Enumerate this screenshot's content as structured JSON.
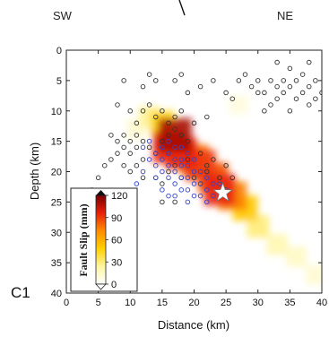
{
  "chart_data": {
    "type": "heatmap",
    "panel_label": "C1",
    "direction_left": "SW",
    "direction_right": "NE",
    "xlabel": "Distance (km)",
    "ylabel": "Depth (km)",
    "xlim": [
      0,
      40
    ],
    "ylim": [
      40,
      0
    ],
    "y_inverted": true,
    "x_ticks": [
      0,
      5,
      10,
      15,
      20,
      25,
      30,
      35,
      40
    ],
    "y_ticks": [
      0,
      5,
      10,
      15,
      20,
      25,
      30,
      35,
      40
    ],
    "colorbar": {
      "label": "Fault Slip (mm)",
      "ticks": [
        0,
        30,
        60,
        90,
        120
      ],
      "range": [
        0,
        120
      ],
      "colors": [
        "#ffffff",
        "#fff5a0",
        "#ffd000",
        "#ff8c00",
        "#e8200a",
        "#7a0000"
      ]
    },
    "slip_field": [
      {
        "x": 13,
        "y": 11,
        "slip": 25
      },
      {
        "x": 15,
        "y": 12,
        "slip": 45
      },
      {
        "x": 17,
        "y": 14,
        "slip": 110
      },
      {
        "x": 16,
        "y": 16,
        "slip": 95
      },
      {
        "x": 18,
        "y": 17,
        "slip": 95
      },
      {
        "x": 20,
        "y": 18,
        "slip": 80
      },
      {
        "x": 21,
        "y": 19,
        "slip": 90
      },
      {
        "x": 23,
        "y": 21,
        "slip": 85
      },
      {
        "x": 24,
        "y": 23,
        "slip": 95
      },
      {
        "x": 26,
        "y": 24,
        "slip": 75
      },
      {
        "x": 28,
        "y": 26,
        "slip": 50
      },
      {
        "x": 30,
        "y": 29,
        "slip": 30
      },
      {
        "x": 33,
        "y": 32,
        "slip": 20
      },
      {
        "x": 36,
        "y": 34,
        "slip": 15
      },
      {
        "x": 39,
        "y": 37,
        "slip": 12
      },
      {
        "x": 11,
        "y": 13,
        "slip": 12
      },
      {
        "x": 27,
        "y": 9,
        "slip": 8
      }
    ],
    "mainshock": {
      "x": 24.5,
      "y": 23.5
    },
    "series": [
      {
        "marker": "open-circle-black",
        "points": [
          [
            9,
            5
          ],
          [
            12,
            6
          ],
          [
            13,
            4
          ],
          [
            14,
            5
          ],
          [
            17,
            5
          ],
          [
            18,
            4
          ],
          [
            19,
            7
          ],
          [
            21,
            6
          ],
          [
            23,
            5
          ],
          [
            25,
            7
          ],
          [
            26,
            8
          ],
          [
            27,
            5
          ],
          [
            28,
            4
          ],
          [
            30,
            7
          ],
          [
            8,
            9
          ],
          [
            10,
            10
          ],
          [
            11,
            12
          ],
          [
            12,
            10
          ],
          [
            13,
            9
          ],
          [
            14,
            11
          ],
          [
            15,
            10
          ],
          [
            16,
            12
          ],
          [
            17,
            11
          ],
          [
            18,
            10
          ],
          [
            20,
            12
          ],
          [
            22,
            11
          ],
          [
            7,
            14
          ],
          [
            8,
            15
          ],
          [
            9,
            16
          ],
          [
            8,
            17
          ],
          [
            9,
            14
          ],
          [
            10,
            15
          ],
          [
            10,
            17
          ],
          [
            11,
            14
          ],
          [
            11,
            16
          ],
          [
            12,
            15
          ],
          [
            12,
            18
          ],
          [
            13,
            16
          ],
          [
            14,
            17
          ],
          [
            9,
            19
          ],
          [
            10,
            20
          ],
          [
            11,
            19
          ],
          [
            12,
            21
          ],
          [
            5,
            21
          ],
          [
            4,
            23
          ],
          [
            3,
            25
          ],
          [
            6,
            19
          ],
          [
            7,
            18
          ],
          [
            14,
            21
          ],
          [
            15,
            22
          ],
          [
            16,
            20
          ],
          [
            17,
            19
          ],
          [
            18,
            21
          ],
          [
            20,
            21
          ],
          [
            21,
            22
          ],
          [
            22,
            20
          ],
          [
            26,
            21
          ],
          [
            17,
            25
          ],
          [
            15,
            25
          ],
          [
            16,
            14
          ],
          [
            17,
            13
          ],
          [
            18,
            14
          ],
          [
            19,
            15
          ],
          [
            15,
            15
          ],
          [
            16,
            17
          ],
          [
            19,
            18
          ],
          [
            21,
            17
          ],
          [
            22,
            19
          ],
          [
            23,
            18
          ],
          [
            25,
            19
          ],
          [
            24,
            21
          ],
          [
            33,
            2
          ],
          [
            35,
            3
          ],
          [
            38,
            2
          ],
          [
            32,
            5
          ],
          [
            33,
            6
          ],
          [
            34,
            7
          ],
          [
            35,
            6
          ],
          [
            36,
            5
          ],
          [
            37,
            7
          ],
          [
            38,
            6
          ],
          [
            39,
            5
          ],
          [
            40,
            7
          ],
          [
            34,
            5
          ],
          [
            36,
            8
          ],
          [
            39,
            8
          ],
          [
            37,
            4
          ],
          [
            31,
            7
          ],
          [
            33,
            8
          ],
          [
            38,
            9
          ],
          [
            35,
            10
          ],
          [
            32,
            9
          ],
          [
            31,
            10
          ],
          [
            29,
            6
          ],
          [
            30,
            5
          ]
        ]
      },
      {
        "marker": "open-circle-blue",
        "points": [
          [
            13,
            15
          ],
          [
            14,
            17
          ],
          [
            14,
            19
          ],
          [
            15,
            16
          ],
          [
            15,
            18
          ],
          [
            15,
            20
          ],
          [
            16,
            15
          ],
          [
            16,
            17
          ],
          [
            16,
            19
          ],
          [
            16,
            21
          ],
          [
            17,
            16
          ],
          [
            17,
            18
          ],
          [
            17,
            20
          ],
          [
            17,
            22
          ],
          [
            18,
            16
          ],
          [
            18,
            18
          ],
          [
            18,
            19
          ],
          [
            18,
            21
          ],
          [
            18,
            23
          ],
          [
            19,
            17
          ],
          [
            19,
            19
          ],
          [
            19,
            21
          ],
          [
            19,
            23
          ],
          [
            20,
            18
          ],
          [
            20,
            20
          ],
          [
            20,
            22
          ],
          [
            21,
            20
          ],
          [
            21,
            22
          ],
          [
            21,
            24
          ],
          [
            22,
            21
          ],
          [
            22,
            23
          ],
          [
            23,
            22
          ],
          [
            23,
            24
          ],
          [
            24,
            22
          ],
          [
            25,
            23
          ],
          [
            12,
            16
          ],
          [
            13,
            18
          ],
          [
            14,
            21
          ],
          [
            15,
            23
          ],
          [
            16,
            24
          ],
          [
            20,
            24
          ],
          [
            22,
            25
          ],
          [
            12,
            20
          ],
          [
            11,
            22
          ],
          [
            17,
            24
          ],
          [
            19,
            25
          ]
        ]
      }
    ]
  }
}
